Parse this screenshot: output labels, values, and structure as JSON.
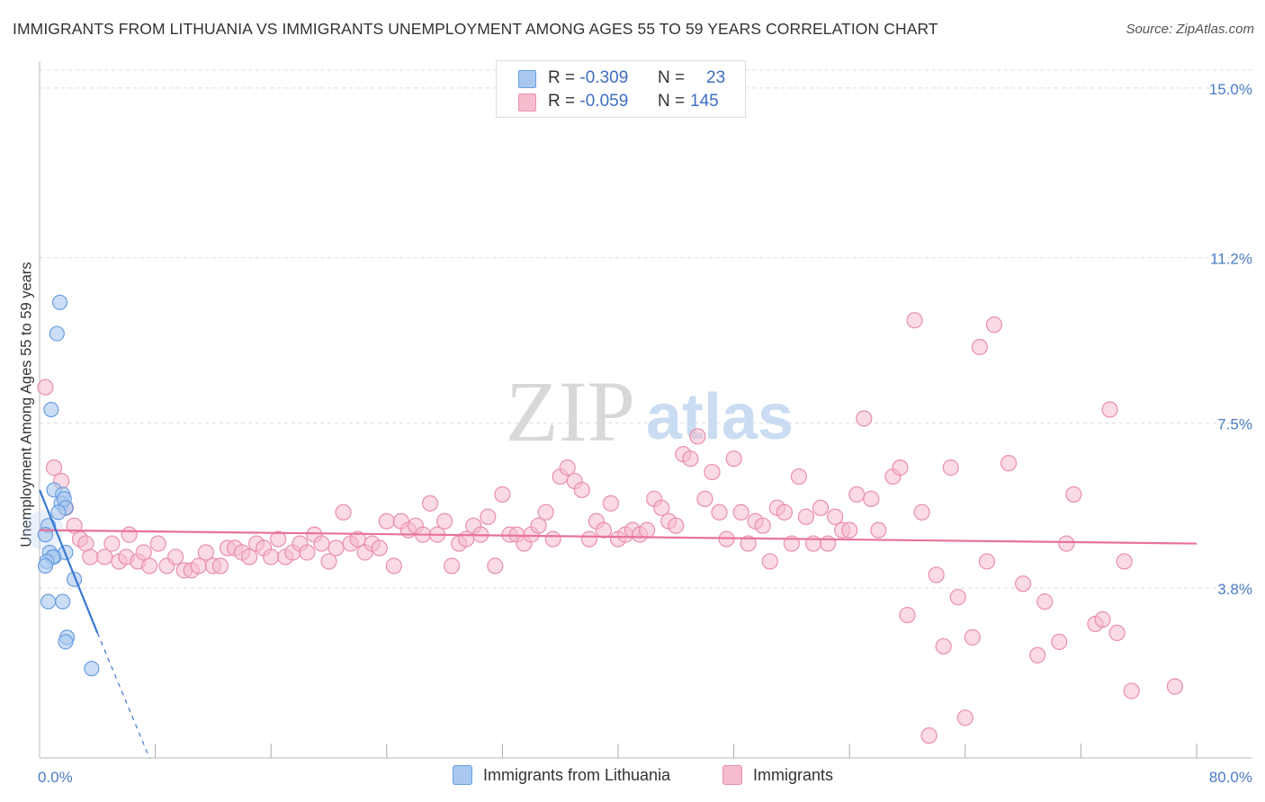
{
  "title": "IMMIGRANTS FROM LITHUANIA VS IMMIGRANTS UNEMPLOYMENT AMONG AGES 55 TO 59 YEARS CORRELATION CHART",
  "source": "Source: ZipAtlas.com",
  "watermark": {
    "zip": "ZIP",
    "atlas": "atlas"
  },
  "legend_top": {
    "rows": [
      {
        "r_label": "R =",
        "r_value": "-0.309",
        "n_label": "N =",
        "n_value": "23"
      },
      {
        "r_label": "R =",
        "r_value": "-0.059",
        "n_label": "N =",
        "n_value": "145"
      }
    ]
  },
  "legend_bottom": [
    {
      "label": "Immigrants from Lithuania"
    },
    {
      "label": "Immigrants"
    }
  ],
  "colors": {
    "blue_fill": "#a9c8ef",
    "blue_stroke": "#6a9ee0",
    "blue_line": "#3a78d4",
    "pink_fill": "#f6bccd",
    "pink_stroke": "#e98fab",
    "pink_line": "#e8729a",
    "tick_text": "#4a7cc7",
    "grid": "#dddddd"
  },
  "chart_data": {
    "type": "scatter",
    "title": "IMMIGRANTS FROM LITHUANIA VS IMMIGRANTS UNEMPLOYMENT AMONG AGES 55 TO 59 YEARS CORRELATION CHART",
    "xlabel": "",
    "ylabel": "Unemployment Among Ages 55 to 59 years",
    "xlim": [
      0,
      80
    ],
    "ylim": [
      0,
      15.4
    ],
    "y_ticks": [
      {
        "value": 3.8,
        "label": "3.8%"
      },
      {
        "value": 7.5,
        "label": "7.5%"
      },
      {
        "value": 11.2,
        "label": "11.2%"
      },
      {
        "value": 15.0,
        "label": "15.0%"
      }
    ],
    "x_ticks": [
      {
        "value": 0,
        "label": "0.0%"
      },
      {
        "value": 80,
        "label": "80.0%"
      }
    ],
    "grid": true,
    "series": [
      {
        "name": "Immigrants from Lithuania",
        "color": "blue",
        "trend": {
          "x0": 0,
          "y0": 6.0,
          "x1": 4.0,
          "y1": 2.8,
          "dash_to_x": 7.6,
          "dash_to_y": -0.1
        },
        "points": [
          [
            1.4,
            10.2
          ],
          [
            1.2,
            9.5
          ],
          [
            0.8,
            7.8
          ],
          [
            1.0,
            6.0
          ],
          [
            1.6,
            5.9
          ],
          [
            1.5,
            5.7
          ],
          [
            1.7,
            5.8
          ],
          [
            1.8,
            5.6
          ],
          [
            1.3,
            5.5
          ],
          [
            0.6,
            5.2
          ],
          [
            0.4,
            5.0
          ],
          [
            0.7,
            4.6
          ],
          [
            1.0,
            4.5
          ],
          [
            1.8,
            4.6
          ],
          [
            0.9,
            4.5
          ],
          [
            0.5,
            4.4
          ],
          [
            0.4,
            4.3
          ],
          [
            2.4,
            4.0
          ],
          [
            0.6,
            3.5
          ],
          [
            1.6,
            3.5
          ],
          [
            1.9,
            2.7
          ],
          [
            1.8,
            2.6
          ],
          [
            3.6,
            2.0
          ]
        ]
      },
      {
        "name": "Immigrants",
        "color": "pink",
        "trend": {
          "x0": 0,
          "y0": 5.1,
          "x1": 80,
          "y1": 4.8
        },
        "points": [
          [
            0.4,
            8.3
          ],
          [
            1.0,
            6.5
          ],
          [
            1.5,
            6.2
          ],
          [
            1.8,
            5.6
          ],
          [
            2.4,
            5.2
          ],
          [
            2.8,
            4.9
          ],
          [
            3.2,
            4.8
          ],
          [
            3.5,
            4.5
          ],
          [
            4.5,
            4.5
          ],
          [
            5.0,
            4.8
          ],
          [
            5.5,
            4.4
          ],
          [
            6.0,
            4.5
          ],
          [
            6.2,
            5.0
          ],
          [
            6.8,
            4.4
          ],
          [
            7.2,
            4.6
          ],
          [
            7.6,
            4.3
          ],
          [
            8.2,
            4.8
          ],
          [
            8.8,
            4.3
          ],
          [
            9.4,
            4.5
          ],
          [
            10.0,
            4.2
          ],
          [
            10.5,
            4.2
          ],
          [
            11.0,
            4.3
          ],
          [
            11.5,
            4.6
          ],
          [
            12.0,
            4.3
          ],
          [
            12.5,
            4.3
          ],
          [
            13.0,
            4.7
          ],
          [
            13.5,
            4.7
          ],
          [
            14.0,
            4.6
          ],
          [
            14.5,
            4.5
          ],
          [
            15.0,
            4.8
          ],
          [
            15.5,
            4.7
          ],
          [
            16.0,
            4.5
          ],
          [
            16.5,
            4.9
          ],
          [
            17.0,
            4.5
          ],
          [
            17.5,
            4.6
          ],
          [
            18.0,
            4.8
          ],
          [
            18.5,
            4.6
          ],
          [
            19.0,
            5.0
          ],
          [
            19.5,
            4.8
          ],
          [
            20.0,
            4.4
          ],
          [
            20.5,
            4.7
          ],
          [
            21.0,
            5.5
          ],
          [
            21.5,
            4.8
          ],
          [
            22.0,
            4.9
          ],
          [
            22.5,
            4.6
          ],
          [
            23.0,
            4.8
          ],
          [
            23.5,
            4.7
          ],
          [
            24.0,
            5.3
          ],
          [
            24.5,
            4.3
          ],
          [
            25.0,
            5.3
          ],
          [
            25.5,
            5.1
          ],
          [
            26.0,
            5.2
          ],
          [
            26.5,
            5.0
          ],
          [
            27.0,
            5.7
          ],
          [
            27.5,
            5.0
          ],
          [
            28.0,
            5.3
          ],
          [
            28.5,
            4.3
          ],
          [
            29.0,
            4.8
          ],
          [
            29.5,
            4.9
          ],
          [
            30.0,
            5.2
          ],
          [
            30.5,
            5.0
          ],
          [
            31.0,
            5.4
          ],
          [
            31.5,
            4.3
          ],
          [
            32.0,
            5.9
          ],
          [
            32.5,
            5.0
          ],
          [
            33.0,
            5.0
          ],
          [
            33.5,
            4.8
          ],
          [
            34.0,
            5.0
          ],
          [
            34.5,
            5.2
          ],
          [
            35.0,
            5.5
          ],
          [
            35.5,
            4.9
          ],
          [
            36.0,
            6.3
          ],
          [
            36.5,
            6.5
          ],
          [
            37.0,
            6.2
          ],
          [
            37.5,
            6.0
          ],
          [
            38.0,
            4.9
          ],
          [
            38.5,
            5.3
          ],
          [
            39.0,
            5.1
          ],
          [
            39.5,
            5.7
          ],
          [
            40.0,
            4.9
          ],
          [
            40.5,
            5.0
          ],
          [
            41.0,
            5.1
          ],
          [
            41.5,
            5.0
          ],
          [
            42.0,
            5.1
          ],
          [
            42.5,
            5.8
          ],
          [
            43.0,
            5.6
          ],
          [
            43.5,
            5.3
          ],
          [
            44.0,
            5.2
          ],
          [
            44.5,
            6.8
          ],
          [
            45.0,
            6.7
          ],
          [
            45.5,
            7.2
          ],
          [
            46.0,
            5.8
          ],
          [
            46.5,
            6.4
          ],
          [
            47.0,
            5.5
          ],
          [
            47.5,
            4.9
          ],
          [
            48.0,
            6.7
          ],
          [
            48.5,
            5.5
          ],
          [
            49.0,
            4.8
          ],
          [
            49.5,
            5.3
          ],
          [
            50.0,
            5.2
          ],
          [
            50.5,
            4.4
          ],
          [
            51.0,
            5.6
          ],
          [
            51.5,
            5.5
          ],
          [
            52.0,
            4.8
          ],
          [
            52.5,
            6.3
          ],
          [
            53.0,
            5.4
          ],
          [
            53.5,
            4.8
          ],
          [
            54.0,
            5.6
          ],
          [
            54.5,
            4.8
          ],
          [
            55.0,
            5.4
          ],
          [
            55.5,
            5.1
          ],
          [
            56.0,
            5.1
          ],
          [
            56.5,
            5.9
          ],
          [
            57.0,
            7.6
          ],
          [
            57.5,
            5.8
          ],
          [
            58.0,
            5.1
          ],
          [
            59.0,
            6.3
          ],
          [
            59.5,
            6.5
          ],
          [
            60.0,
            3.2
          ],
          [
            60.5,
            9.8
          ],
          [
            61.0,
            5.5
          ],
          [
            61.5,
            0.5
          ],
          [
            62.0,
            4.1
          ],
          [
            62.5,
            2.5
          ],
          [
            63.0,
            6.5
          ],
          [
            63.5,
            3.6
          ],
          [
            64.0,
            0.9
          ],
          [
            64.5,
            2.7
          ],
          [
            65.0,
            9.2
          ],
          [
            65.5,
            4.4
          ],
          [
            66.0,
            9.7
          ],
          [
            67.0,
            6.6
          ],
          [
            68.0,
            3.9
          ],
          [
            69.0,
            2.3
          ],
          [
            69.5,
            3.5
          ],
          [
            70.5,
            2.6
          ],
          [
            71.0,
            4.8
          ],
          [
            71.5,
            5.9
          ],
          [
            73.0,
            3.0
          ],
          [
            73.5,
            3.1
          ],
          [
            74.0,
            7.8
          ],
          [
            74.5,
            2.8
          ],
          [
            75.0,
            4.4
          ],
          [
            75.5,
            1.5
          ],
          [
            78.5,
            1.6
          ]
        ]
      }
    ]
  }
}
